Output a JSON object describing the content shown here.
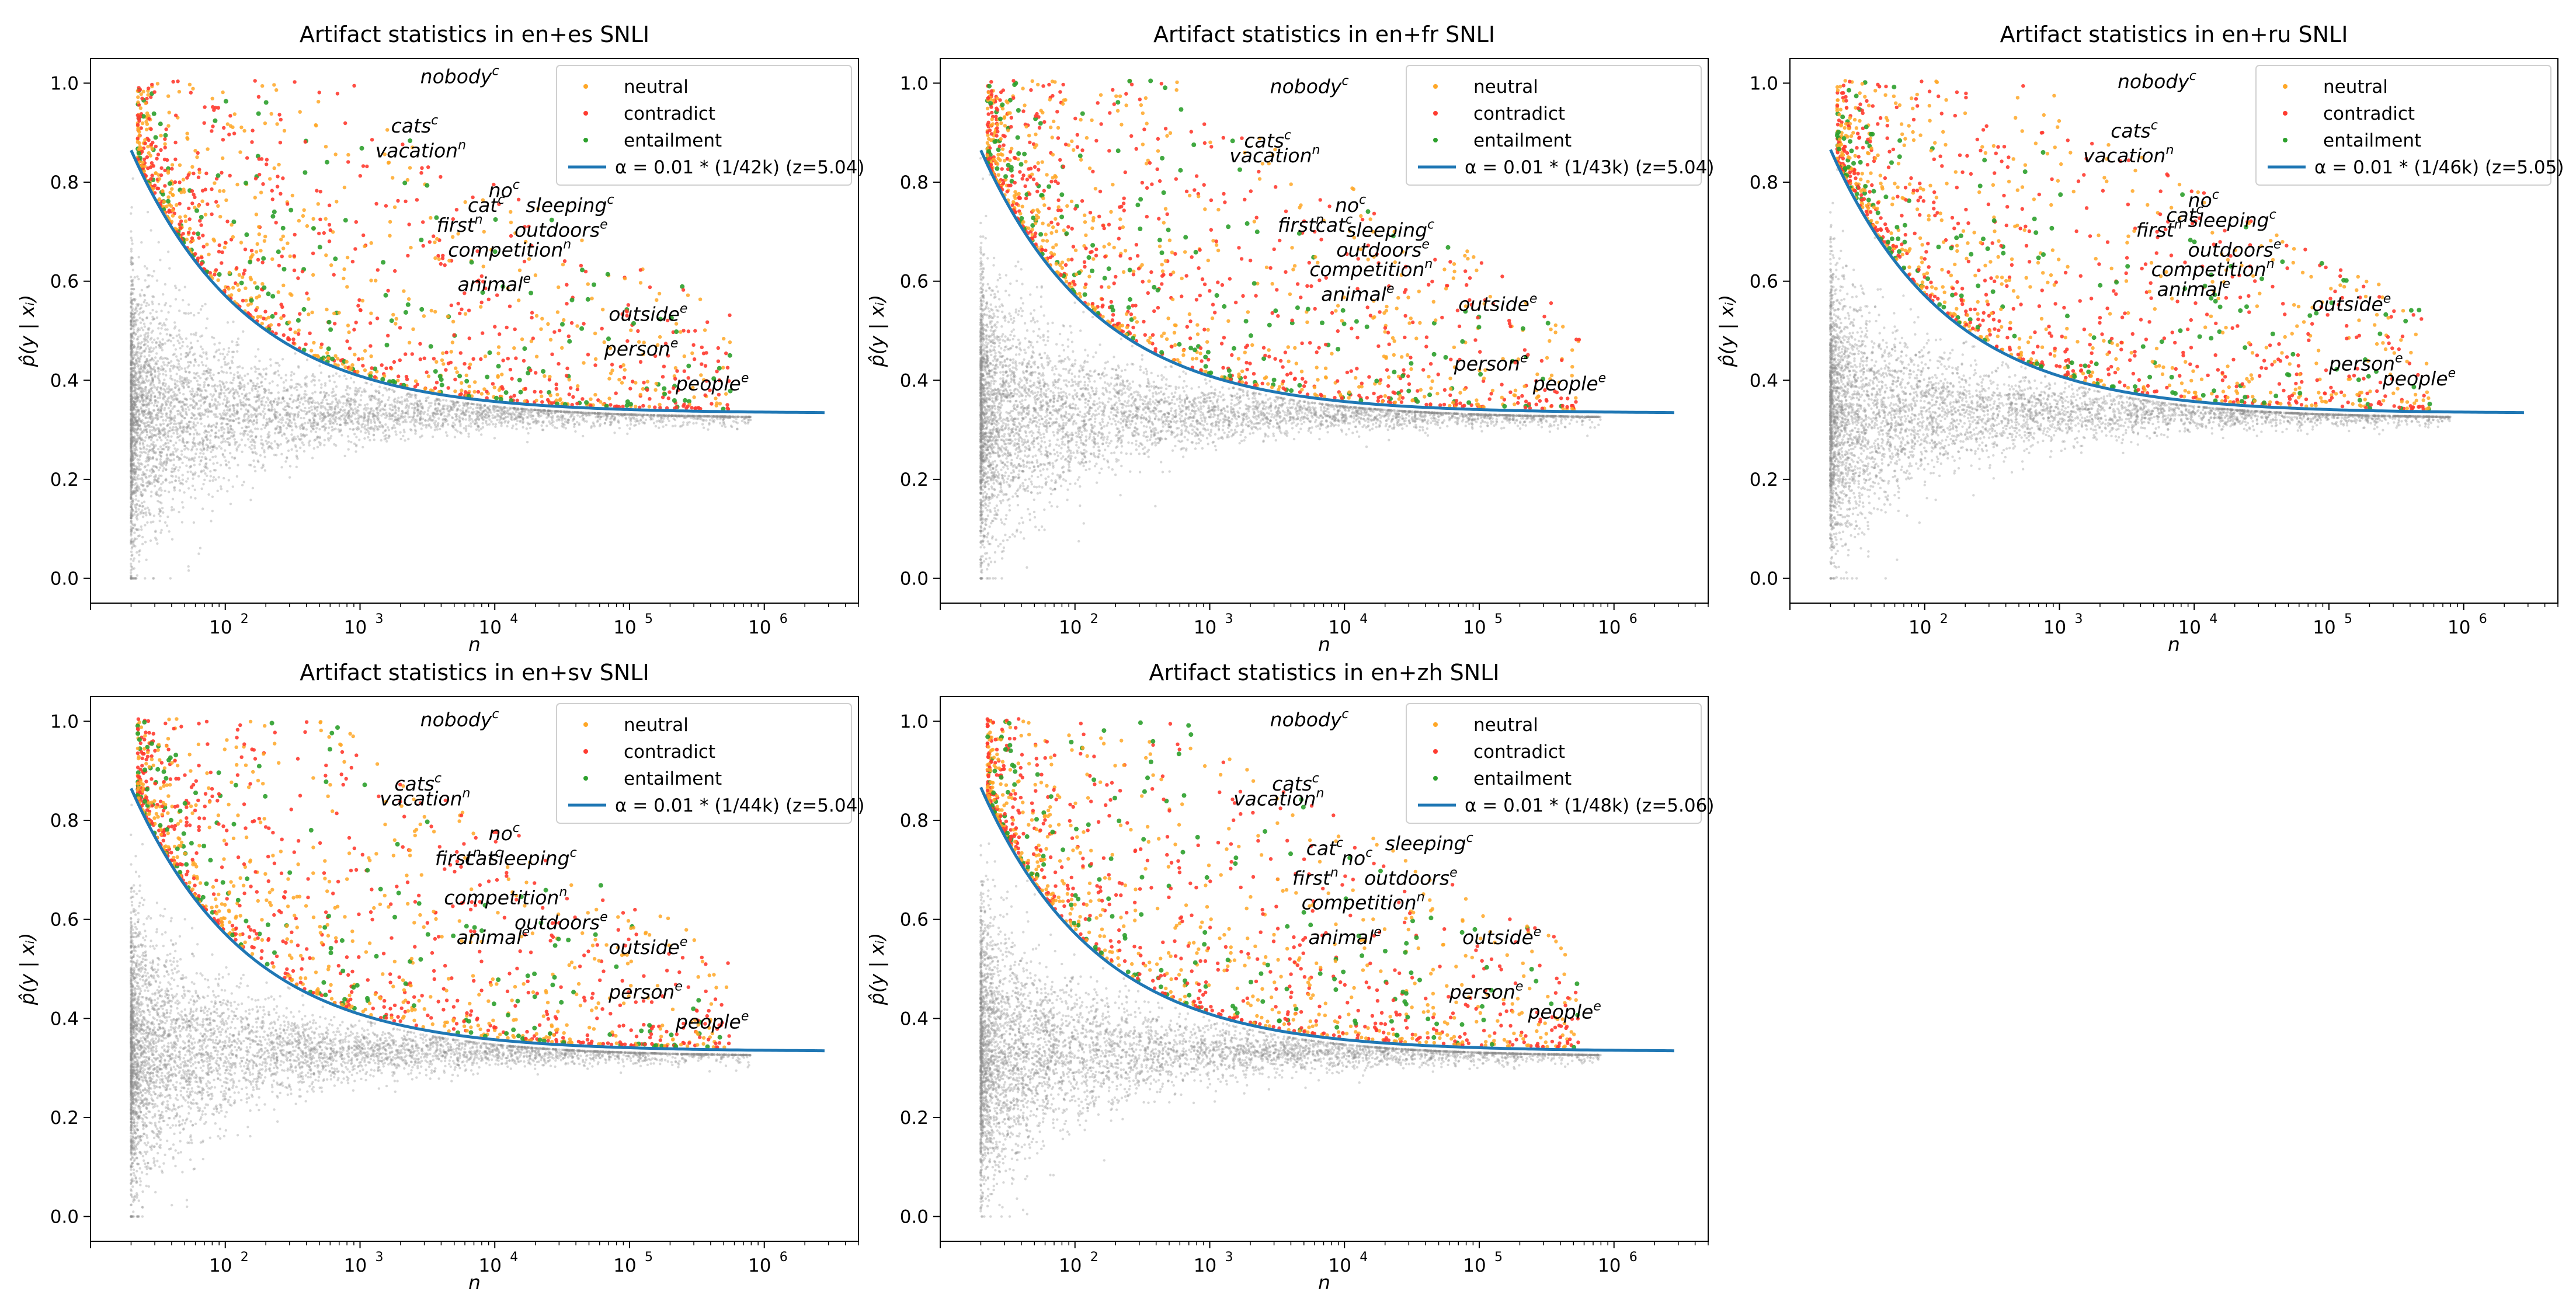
{
  "figure": {
    "name": "artifact-statistics-figure"
  },
  "colors": {
    "neutral": "#ffa726",
    "contradict": "#ff3b30",
    "entailment": "#2ca02c",
    "threshold": "#1f77b4",
    "background_points": "#8c8c8c"
  },
  "chart_data": [
    {
      "type": "scatter",
      "title": "Artifact statistics in en+es SNLI",
      "xlabel": "n",
      "ylabel": "p̂(y | xᵢ)",
      "xscale": "log",
      "xlim": [
        10,
        5000000
      ],
      "ylim": [
        -0.05,
        1.05
      ],
      "xticks": [
        "10",
        "2",
        "10",
        "3",
        "10",
        "4",
        "10",
        "5",
        "10",
        "6"
      ],
      "xtick_labels": [
        {
          "base": "10",
          "exp": "2"
        },
        {
          "base": "10",
          "exp": "3"
        },
        {
          "base": "10",
          "exp": "4"
        },
        {
          "base": "10",
          "exp": "5"
        },
        {
          "base": "10",
          "exp": "6"
        }
      ],
      "ytick_labels": [
        "0.0",
        "0.2",
        "0.4",
        "0.6",
        "0.8",
        "1.0"
      ],
      "yticks": [
        0.0,
        0.2,
        0.4,
        0.6,
        0.8,
        1.0
      ],
      "legend": {
        "placement": "top-right",
        "entries": [
          "neutral",
          "contradict",
          "entailment"
        ],
        "line": "α = 0.01 * (1/42k) (z=5.04)"
      },
      "threshold_z": 5.04,
      "annotations": [
        {
          "word": "nobody",
          "sup": "c",
          "x": 2800,
          "y": 1.0
        },
        {
          "word": "cats",
          "sup": "c",
          "x": 1700,
          "y": 0.9
        },
        {
          "word": "vacation",
          "sup": "n",
          "x": 1300,
          "y": 0.85
        },
        {
          "word": "no",
          "sup": "c",
          "x": 9000,
          "y": 0.77
        },
        {
          "word": "cat",
          "sup": "c",
          "x": 6300,
          "y": 0.74
        },
        {
          "word": "sleeping",
          "sup": "c",
          "x": 17000,
          "y": 0.74
        },
        {
          "word": "first",
          "sup": "n",
          "x": 3700,
          "y": 0.7
        },
        {
          "word": "outdoors",
          "sup": "e",
          "x": 14000,
          "y": 0.69
        },
        {
          "word": "competition",
          "sup": "n",
          "x": 4500,
          "y": 0.65
        },
        {
          "word": "animal",
          "sup": "e",
          "x": 5300,
          "y": 0.58
        },
        {
          "word": "outside",
          "sup": "e",
          "x": 70000,
          "y": 0.52
        },
        {
          "word": "person",
          "sup": "e",
          "x": 65000,
          "y": 0.45
        },
        {
          "word": "people",
          "sup": "e",
          "x": 220000,
          "y": 0.38
        }
      ]
    },
    {
      "type": "scatter",
      "title": "Artifact statistics in en+fr SNLI",
      "xlabel": "n",
      "ylabel": "p̂(y | xᵢ)",
      "xscale": "log",
      "xlim": [
        10,
        5000000
      ],
      "ylim": [
        -0.05,
        1.05
      ],
      "xtick_labels": [
        {
          "base": "10",
          "exp": "2"
        },
        {
          "base": "10",
          "exp": "3"
        },
        {
          "base": "10",
          "exp": "4"
        },
        {
          "base": "10",
          "exp": "5"
        },
        {
          "base": "10",
          "exp": "6"
        }
      ],
      "ytick_labels": [
        "0.0",
        "0.2",
        "0.4",
        "0.6",
        "0.8",
        "1.0"
      ],
      "yticks": [
        0.0,
        0.2,
        0.4,
        0.6,
        0.8,
        1.0
      ],
      "legend": {
        "placement": "top-right",
        "entries": [
          "neutral",
          "contradict",
          "entailment"
        ],
        "line": "α = 0.01 * (1/43k) (z=5.04)"
      },
      "threshold_z": 5.04,
      "annotations": [
        {
          "word": "nobody",
          "sup": "c",
          "x": 2800,
          "y": 0.98
        },
        {
          "word": "cats",
          "sup": "c",
          "x": 1800,
          "y": 0.87
        },
        {
          "word": "vacation",
          "sup": "n",
          "x": 1400,
          "y": 0.84
        },
        {
          "word": "no",
          "sup": "c",
          "x": 8500,
          "y": 0.74
        },
        {
          "word": "first",
          "sup": "n",
          "x": 3200,
          "y": 0.7
        },
        {
          "word": "cat",
          "sup": "c",
          "x": 6100,
          "y": 0.7
        },
        {
          "word": "sleeping",
          "sup": "c",
          "x": 10300,
          "y": 0.69
        },
        {
          "word": "outdoors",
          "sup": "e",
          "x": 8700,
          "y": 0.65
        },
        {
          "word": "competition",
          "sup": "n",
          "x": 5500,
          "y": 0.61
        },
        {
          "word": "animal",
          "sup": "e",
          "x": 6700,
          "y": 0.56
        },
        {
          "word": "outside",
          "sup": "e",
          "x": 70000,
          "y": 0.54
        },
        {
          "word": "person",
          "sup": "e",
          "x": 65000,
          "y": 0.42
        },
        {
          "word": "people",
          "sup": "e",
          "x": 250000,
          "y": 0.38
        }
      ]
    },
    {
      "type": "scatter",
      "title": "Artifact statistics in en+ru SNLI",
      "xlabel": "n",
      "ylabel": "p̂(y | xᵢ)",
      "xscale": "log",
      "xlim": [
        10,
        5000000
      ],
      "ylim": [
        -0.05,
        1.05
      ],
      "xtick_labels": [
        {
          "base": "10",
          "exp": "2"
        },
        {
          "base": "10",
          "exp": "3"
        },
        {
          "base": "10",
          "exp": "4"
        },
        {
          "base": "10",
          "exp": "5"
        },
        {
          "base": "10",
          "exp": "6"
        }
      ],
      "ytick_labels": [
        "0.0",
        "0.2",
        "0.4",
        "0.6",
        "0.8",
        "1.0"
      ],
      "yticks": [
        0.0,
        0.2,
        0.4,
        0.6,
        0.8,
        1.0
      ],
      "legend": {
        "placement": "top-right",
        "entries": [
          "neutral",
          "contradict",
          "entailment"
        ],
        "line": "α = 0.01 * (1/46k) (z=5.05)"
      },
      "threshold_z": 5.05,
      "annotations": [
        {
          "word": "nobody",
          "sup": "c",
          "x": 2700,
          "y": 0.99
        },
        {
          "word": "cats",
          "sup": "c",
          "x": 2400,
          "y": 0.89
        },
        {
          "word": "vacation",
          "sup": "n",
          "x": 1500,
          "y": 0.84
        },
        {
          "word": "no",
          "sup": "c",
          "x": 9000,
          "y": 0.75
        },
        {
          "word": "cat",
          "sup": "c",
          "x": 6200,
          "y": 0.72
        },
        {
          "word": "sleeping",
          "sup": "c",
          "x": 9000,
          "y": 0.71
        },
        {
          "word": "first",
          "sup": "n",
          "x": 3700,
          "y": 0.69
        },
        {
          "word": "outdoors",
          "sup": "e",
          "x": 9000,
          "y": 0.65
        },
        {
          "word": "competition",
          "sup": "n",
          "x": 4800,
          "y": 0.61
        },
        {
          "word": "animal",
          "sup": "e",
          "x": 5300,
          "y": 0.57
        },
        {
          "word": "outside",
          "sup": "e",
          "x": 75000,
          "y": 0.54
        },
        {
          "word": "person",
          "sup": "e",
          "x": 100000,
          "y": 0.42
        },
        {
          "word": "people",
          "sup": "e",
          "x": 250000,
          "y": 0.39
        }
      ]
    },
    {
      "type": "scatter",
      "title": "Artifact statistics in en+sv SNLI",
      "xlabel": "n",
      "ylabel": "p̂(y | xᵢ)",
      "xscale": "log",
      "xlim": [
        10,
        5000000
      ],
      "ylim": [
        -0.05,
        1.05
      ],
      "xtick_labels": [
        {
          "base": "10",
          "exp": "2"
        },
        {
          "base": "10",
          "exp": "3"
        },
        {
          "base": "10",
          "exp": "4"
        },
        {
          "base": "10",
          "exp": "5"
        },
        {
          "base": "10",
          "exp": "6"
        }
      ],
      "ytick_labels": [
        "0.0",
        "0.2",
        "0.4",
        "0.6",
        "0.8",
        "1.0"
      ],
      "yticks": [
        0.0,
        0.2,
        0.4,
        0.6,
        0.8,
        1.0
      ],
      "legend": {
        "placement": "top-right",
        "entries": [
          "neutral",
          "contradict",
          "entailment"
        ],
        "line": "α = 0.01 * (1/44k) (z=5.04)"
      },
      "threshold_z": 5.04,
      "annotations": [
        {
          "word": "nobody",
          "sup": "c",
          "x": 2800,
          "y": 0.99
        },
        {
          "word": "cats",
          "sup": "c",
          "x": 1800,
          "y": 0.86
        },
        {
          "word": "vacation",
          "sup": "n",
          "x": 1400,
          "y": 0.83
        },
        {
          "word": "no",
          "sup": "c",
          "x": 9000,
          "y": 0.76
        },
        {
          "word": "first",
          "sup": "n",
          "x": 3600,
          "y": 0.71
        },
        {
          "word": "cat",
          "sup": "c",
          "x": 6000,
          "y": 0.71
        },
        {
          "word": "sleeping",
          "sup": "c",
          "x": 9000,
          "y": 0.71
        },
        {
          "word": "competition",
          "sup": "n",
          "x": 4200,
          "y": 0.63
        },
        {
          "word": "outdoors",
          "sup": "e",
          "x": 14000,
          "y": 0.58
        },
        {
          "word": "animal",
          "sup": "e",
          "x": 5200,
          "y": 0.55
        },
        {
          "word": "outside",
          "sup": "e",
          "x": 70000,
          "y": 0.53
        },
        {
          "word": "person",
          "sup": "e",
          "x": 70000,
          "y": 0.44
        },
        {
          "word": "people",
          "sup": "e",
          "x": 220000,
          "y": 0.38
        }
      ]
    },
    {
      "type": "scatter",
      "title": "Artifact statistics in en+zh SNLI",
      "xlabel": "n",
      "ylabel": "p̂(y | xᵢ)",
      "xscale": "log",
      "xlim": [
        10,
        5000000
      ],
      "ylim": [
        -0.05,
        1.05
      ],
      "xtick_labels": [
        {
          "base": "10",
          "exp": "2"
        },
        {
          "base": "10",
          "exp": "3"
        },
        {
          "base": "10",
          "exp": "4"
        },
        {
          "base": "10",
          "exp": "5"
        },
        {
          "base": "10",
          "exp": "6"
        }
      ],
      "ytick_labels": [
        "0.0",
        "0.2",
        "0.4",
        "0.6",
        "0.8",
        "1.0"
      ],
      "yticks": [
        0.0,
        0.2,
        0.4,
        0.6,
        0.8,
        1.0
      ],
      "legend": {
        "placement": "top-right",
        "entries": [
          "neutral",
          "contradict",
          "entailment"
        ],
        "line": "α = 0.01 * (1/48k) (z=5.06)"
      },
      "threshold_z": 5.06,
      "annotations": [
        {
          "word": "nobody",
          "sup": "c",
          "x": 2800,
          "y": 0.99
        },
        {
          "word": "cats",
          "sup": "c",
          "x": 2900,
          "y": 0.86
        },
        {
          "word": "vacation",
          "sup": "n",
          "x": 1500,
          "y": 0.83
        },
        {
          "word": "cat",
          "sup": "c",
          "x": 5200,
          "y": 0.73
        },
        {
          "word": "no",
          "sup": "c",
          "x": 9500,
          "y": 0.71
        },
        {
          "word": "sleeping",
          "sup": "c",
          "x": 20000,
          "y": 0.74
        },
        {
          "word": "first",
          "sup": "n",
          "x": 4100,
          "y": 0.67
        },
        {
          "word": "outdoors",
          "sup": "e",
          "x": 14000,
          "y": 0.67
        },
        {
          "word": "competition",
          "sup": "n",
          "x": 4800,
          "y": 0.62
        },
        {
          "word": "animal",
          "sup": "e",
          "x": 5400,
          "y": 0.55
        },
        {
          "word": "outside",
          "sup": "e",
          "x": 75000,
          "y": 0.55
        },
        {
          "word": "person",
          "sup": "e",
          "x": 60000,
          "y": 0.44
        },
        {
          "word": "people",
          "sup": "e",
          "x": 230000,
          "y": 0.4
        }
      ]
    }
  ]
}
